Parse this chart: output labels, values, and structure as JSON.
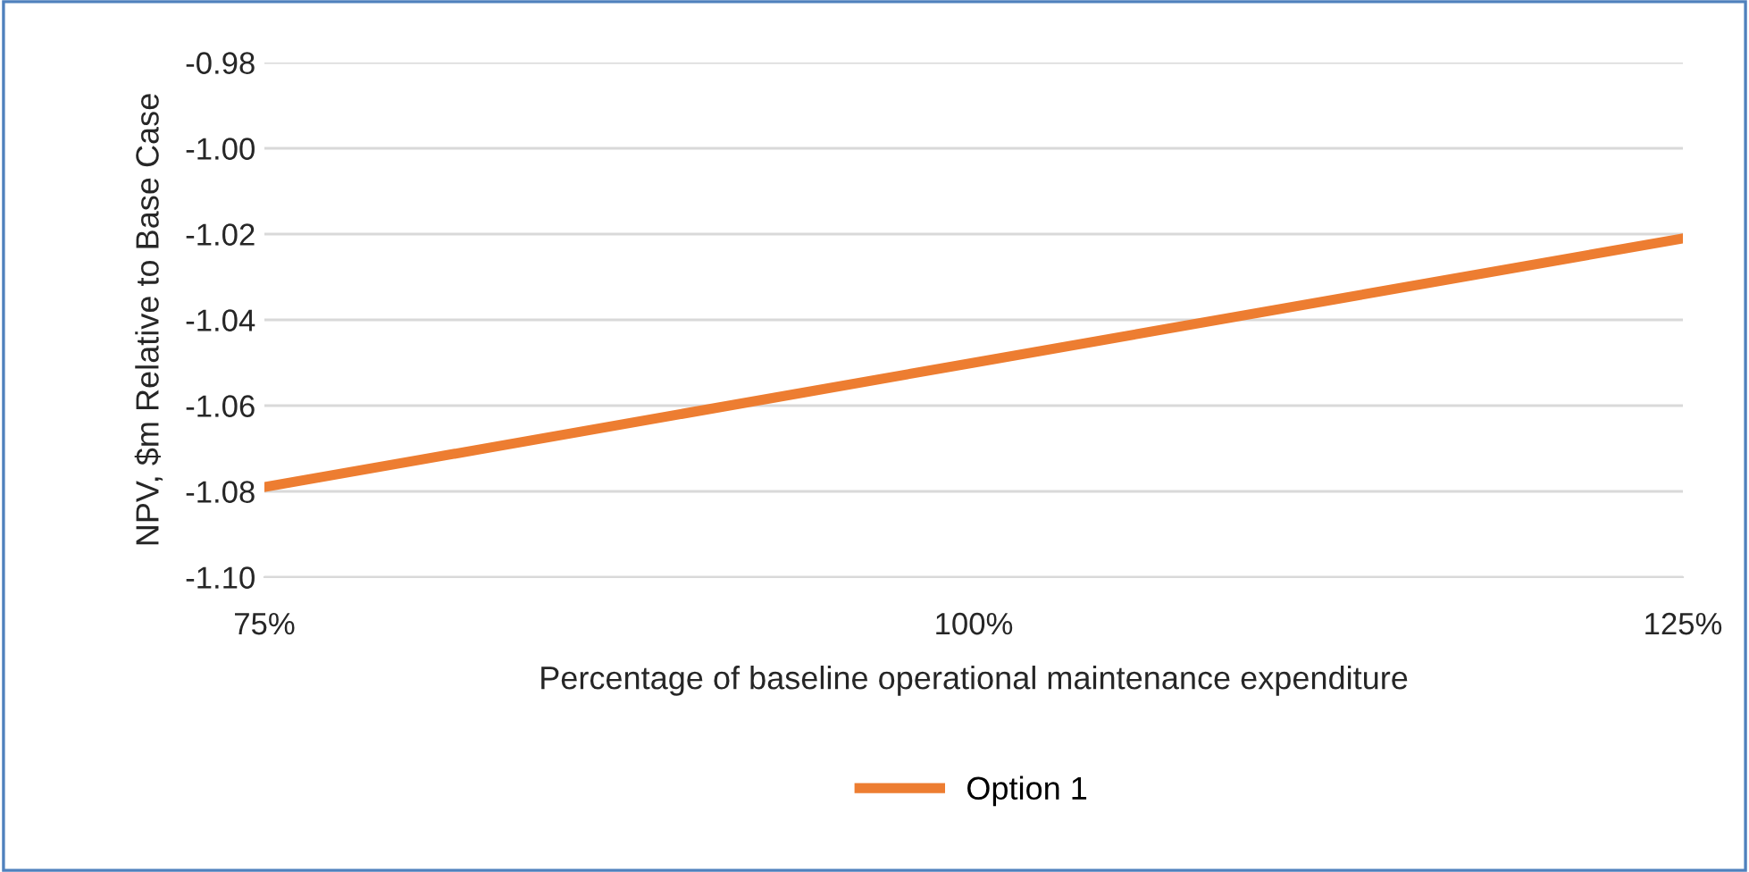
{
  "chart_data": {
    "type": "line",
    "xlabel": "Percentage of baseline operational maintenance expenditure",
    "ylabel": "NPV, $m Relative to Base Case",
    "x": [
      75,
      100,
      125
    ],
    "series": [
      {
        "name": "Option 1",
        "color": "#ed7d31",
        "values": [
          -1.079,
          -1.05,
          -1.021
        ]
      }
    ],
    "xlim": [
      75,
      125
    ],
    "xticks": [
      {
        "value": 75,
        "label": "75%"
      },
      {
        "value": 100,
        "label": "100%"
      },
      {
        "value": 125,
        "label": "125%"
      }
    ],
    "ylim": [
      -1.1,
      -0.98
    ],
    "yticks": [
      {
        "value": -1.1,
        "label": "-1.10"
      },
      {
        "value": -1.08,
        "label": "-1.08"
      },
      {
        "value": -1.06,
        "label": "-1.06"
      },
      {
        "value": -1.04,
        "label": "-1.04"
      },
      {
        "value": -1.02,
        "label": "-1.02"
      },
      {
        "value": -1.0,
        "label": "-1.00"
      },
      {
        "value": -0.98,
        "label": "-0.98"
      }
    ],
    "grid": "y",
    "legend": "bottom",
    "marker": "none",
    "line_style": "solid"
  }
}
